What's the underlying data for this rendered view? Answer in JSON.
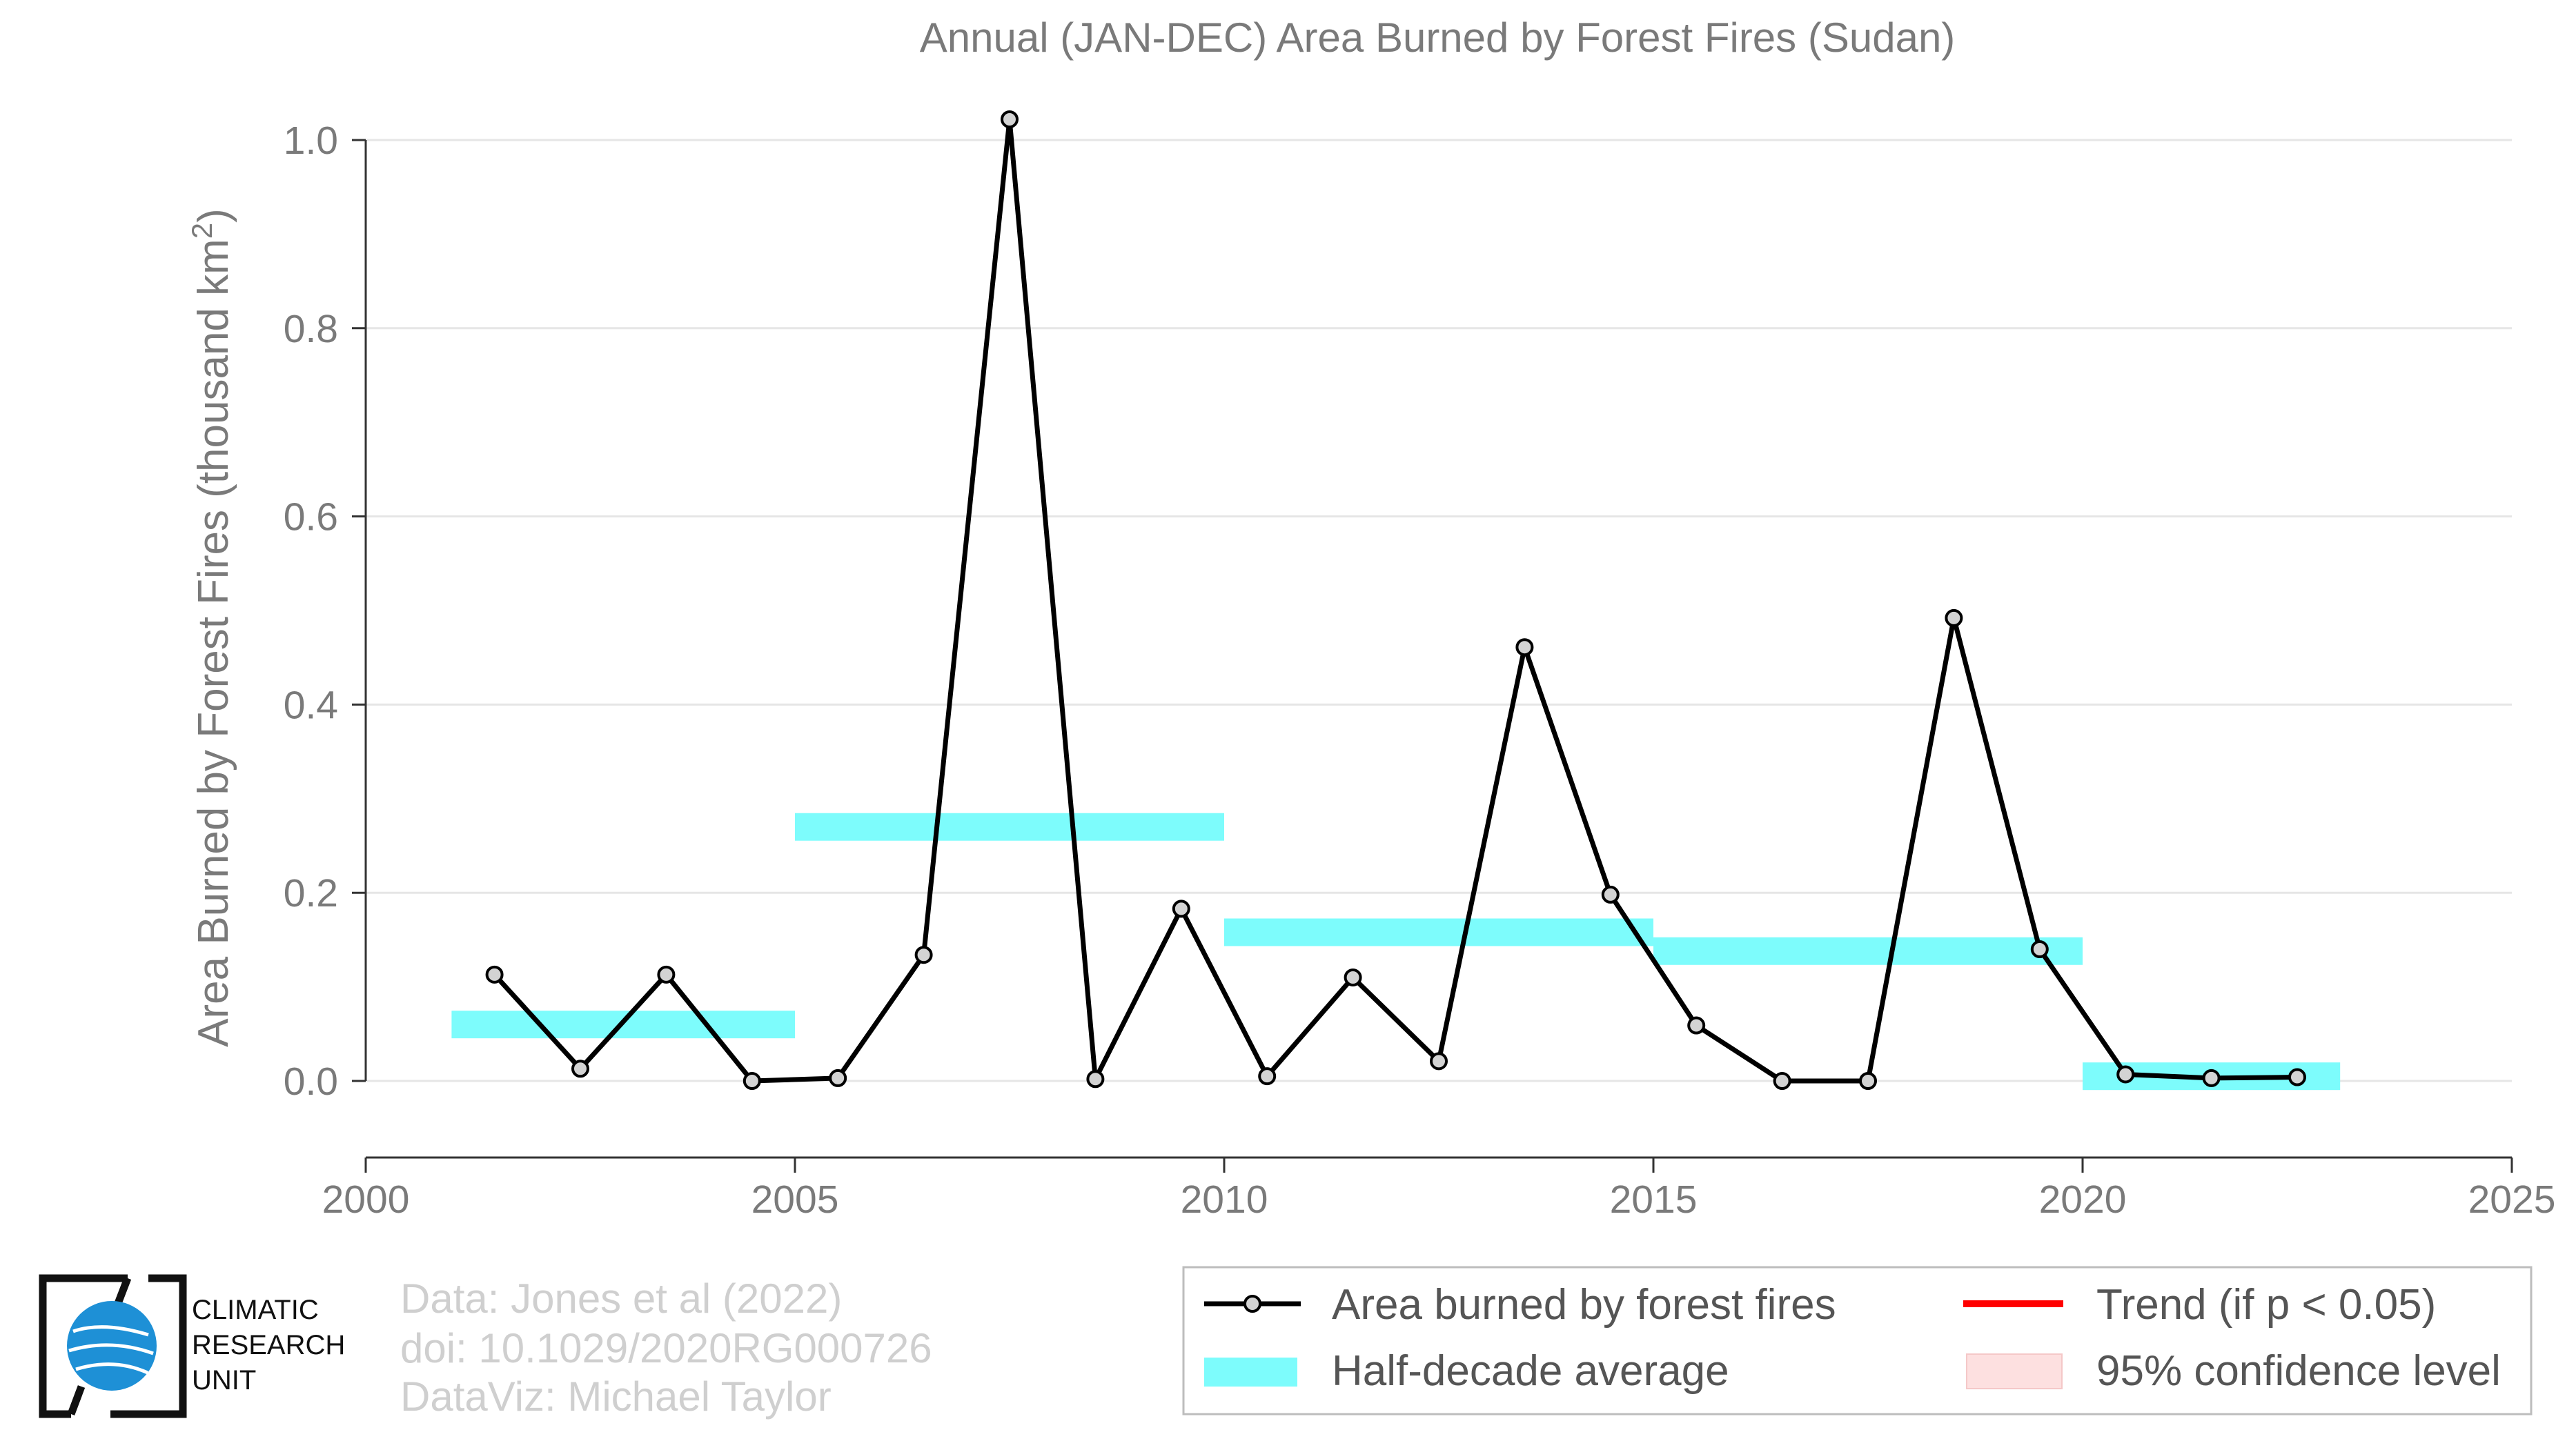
{
  "chart_data": {
    "type": "line",
    "title": "Annual (JAN-DEC) Area Burned by Forest Fires (Sudan)",
    "ylabel": "Area Burned by Forest Fires (thousand km",
    "ylabel_sup": "2",
    "ylabel_close": ")",
    "xlim": [
      2000,
      2025
    ],
    "ylim": [
      -0.08,
      1.06
    ],
    "x_ticks": [
      2000,
      2005,
      2010,
      2015,
      2020,
      2025
    ],
    "x_tick_labels": [
      "2000",
      "2005",
      "2010",
      "2015",
      "2020",
      "2025"
    ],
    "y_ticks": [
      0.0,
      0.2,
      0.4,
      0.6,
      0.8,
      1.0
    ],
    "y_tick_labels": [
      "0.0",
      "0.2",
      "0.4",
      "0.6",
      "0.8",
      "1.0"
    ],
    "grid": true,
    "series": [
      {
        "name": "Area burned by forest fires",
        "color": "#000000",
        "marker_fill": "#d3d3d3",
        "x": [
          2001.5,
          2002.5,
          2003.5,
          2004.5,
          2005.5,
          2006.5,
          2007.5,
          2008.5,
          2009.5,
          2010.5,
          2011.5,
          2012.5,
          2013.5,
          2014.5,
          2015.5,
          2016.5,
          2017.5,
          2018.5,
          2019.5,
          2020.5,
          2021.5,
          2022.5
        ],
        "y": [
          0.113,
          0.013,
          0.113,
          0.0,
          0.003,
          0.134,
          1.022,
          0.002,
          0.183,
          0.005,
          0.11,
          0.021,
          0.461,
          0.198,
          0.059,
          0.0,
          0.0,
          0.492,
          0.14,
          0.007,
          0.003,
          0.004
        ]
      }
    ],
    "half_decade_average": {
      "name": "Half-decade average",
      "color": "#7dfcfc",
      "segments": [
        {
          "x_start": 2001,
          "x_end": 2005,
          "value": 0.06
        },
        {
          "x_start": 2005,
          "x_end": 2010,
          "value": 0.27
        },
        {
          "x_start": 2010,
          "x_end": 2015,
          "value": 0.158
        },
        {
          "x_start": 2015,
          "x_end": 2020,
          "value": 0.138
        },
        {
          "x_start": 2020,
          "x_end": 2023,
          "value": 0.005
        }
      ]
    },
    "legend": {
      "position": "bottom-right",
      "items": [
        {
          "label": "Area burned by forest fires",
          "kind": "line-marker",
          "color": "#000000"
        },
        {
          "label": "Trend (if p < 0.05)",
          "kind": "line",
          "color": "#ff0000"
        },
        {
          "label": "Half-decade average",
          "kind": "band",
          "color": "#7dfcfc"
        },
        {
          "label": "95% confidence level",
          "kind": "band",
          "color": "#fde0e0"
        }
      ]
    }
  },
  "credits": {
    "line1": "Data: Jones et al (2022)",
    "line2": "doi: 10.1029/2020RG000726",
    "line3": "DataViz: Michael Taylor"
  },
  "logo": {
    "line1": "CLIMATIC",
    "line2": "RESEARCH",
    "line3": "UNIT",
    "globe_color": "#1e90d6"
  }
}
